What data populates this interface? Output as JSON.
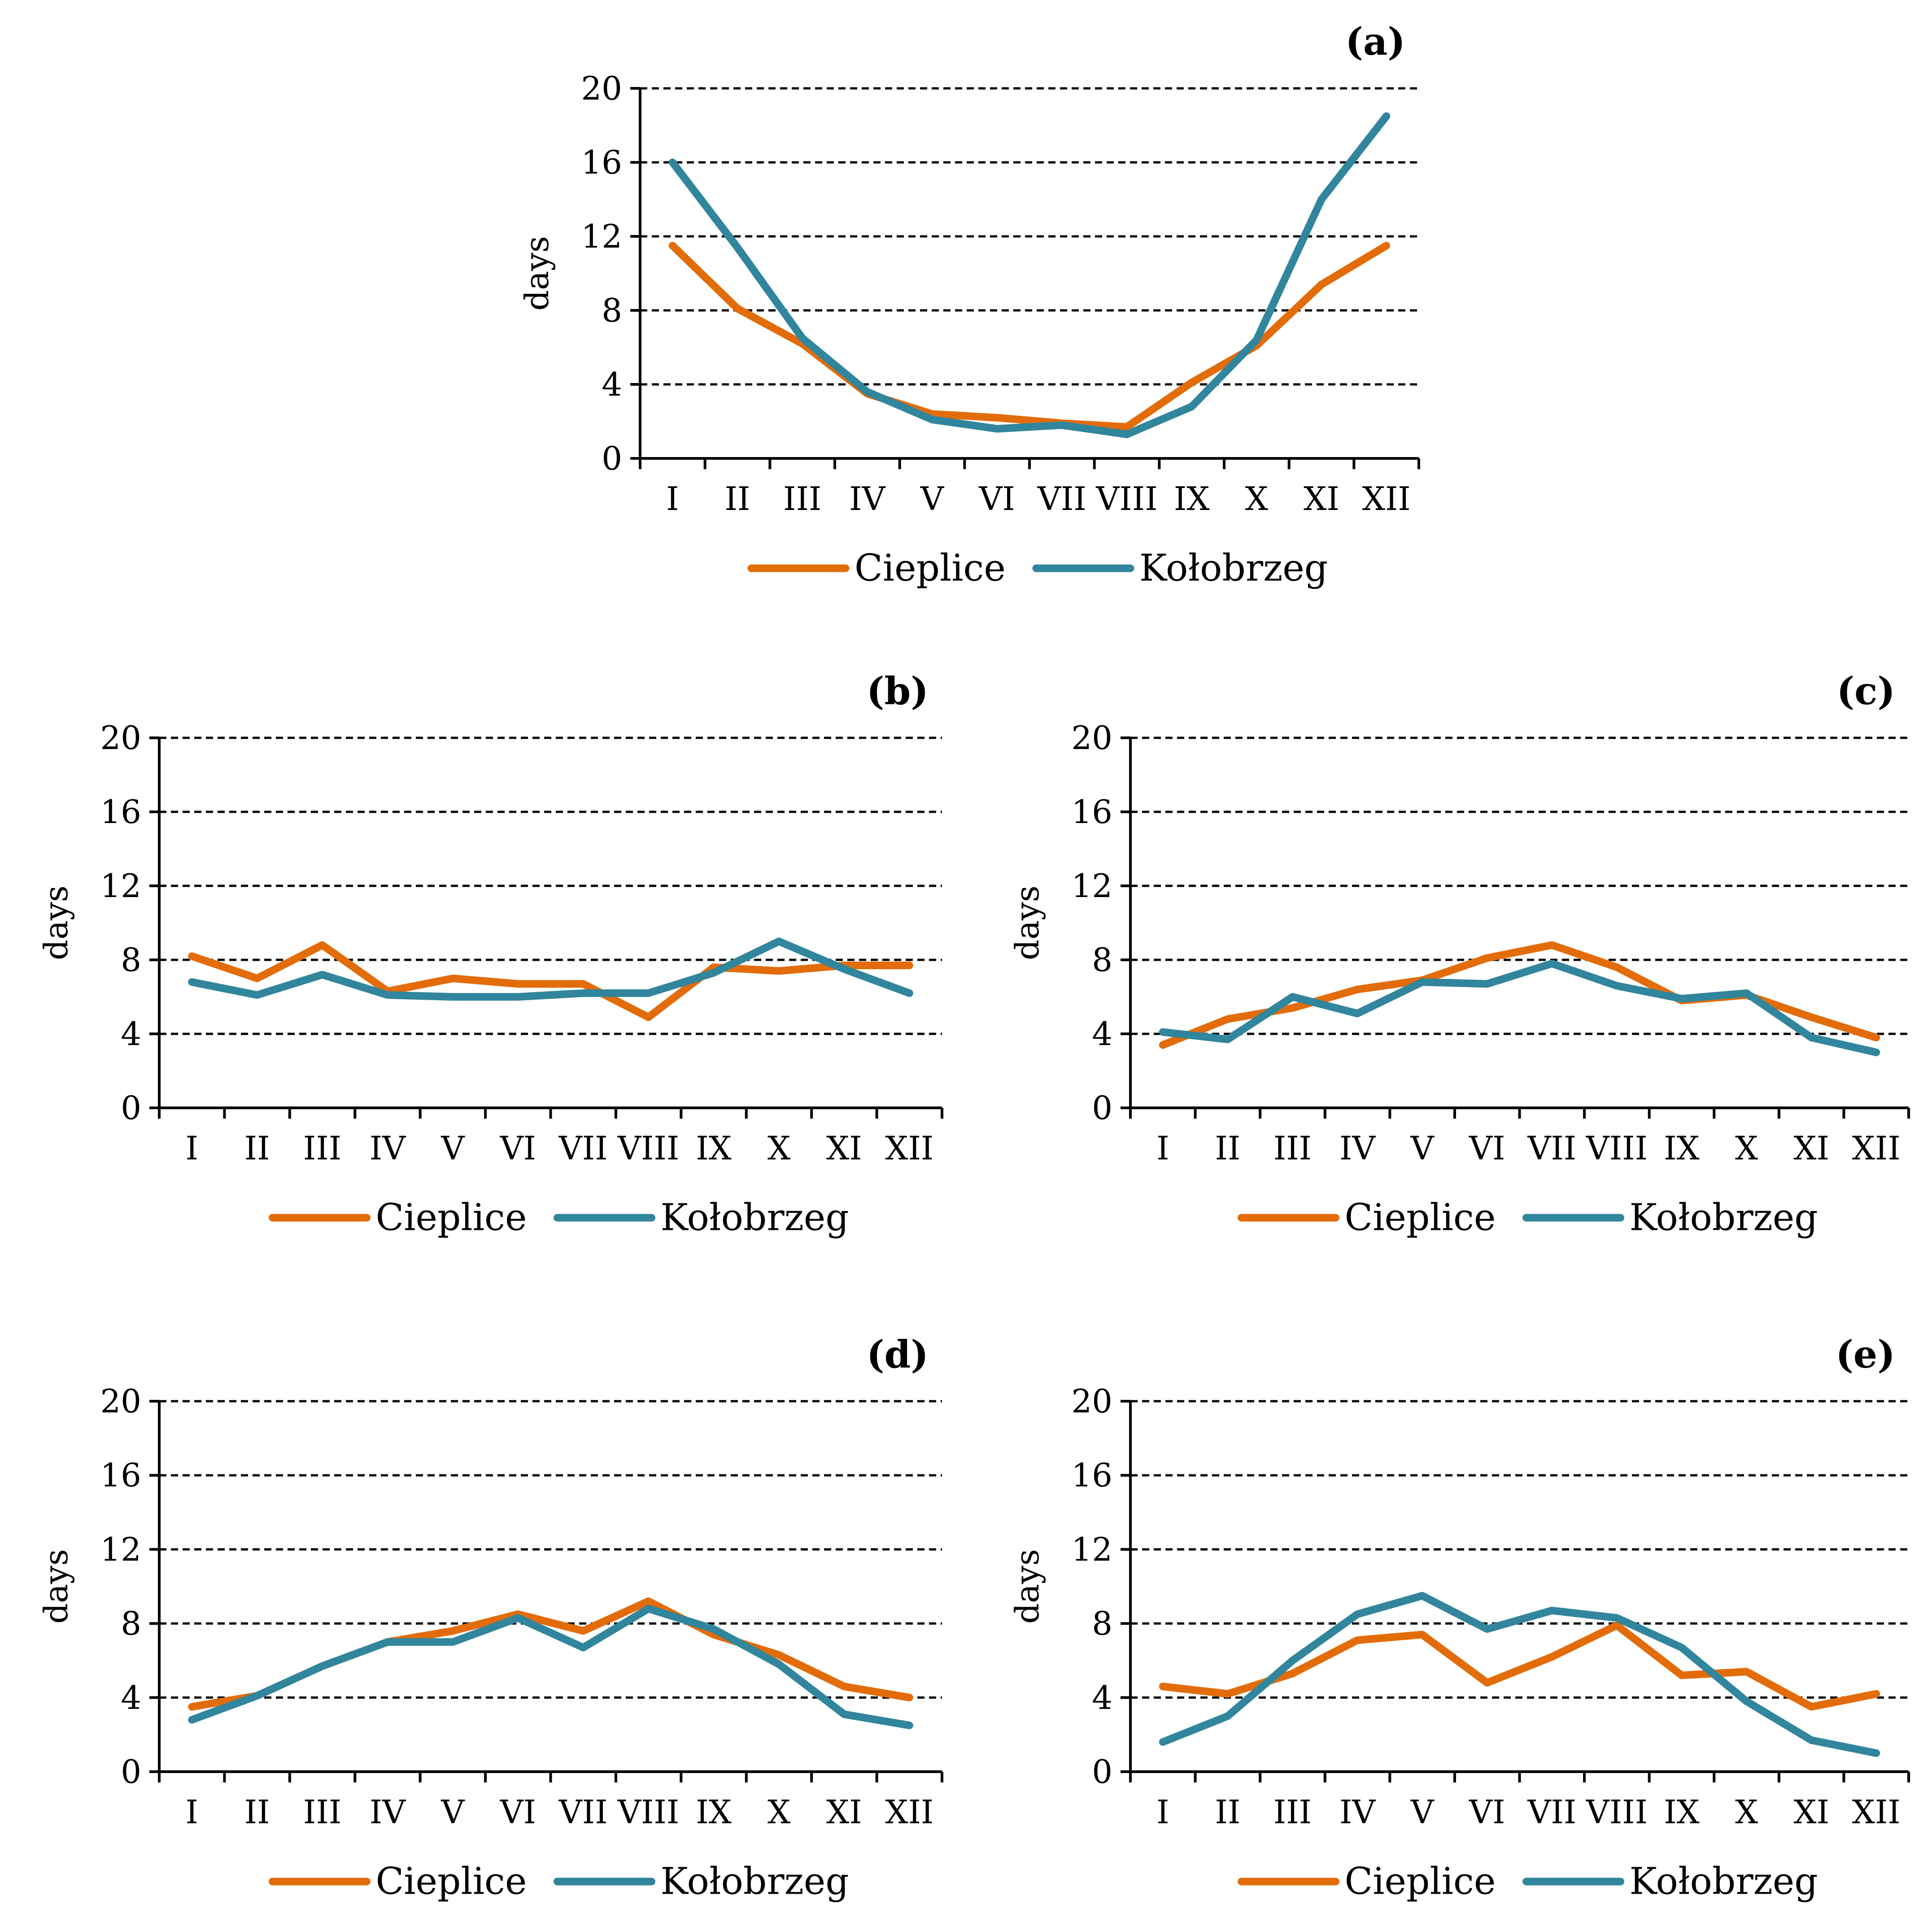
{
  "colors": {
    "cieplice": "#E36C0A",
    "kolobrzeg": "#31859C",
    "axis": "#000000",
    "grid": "#000000"
  },
  "chart_data": [
    {
      "type": "line",
      "panel": "(a)",
      "ylabel": "days",
      "xlabel": "",
      "ylim": [
        0,
        20
      ],
      "yticks": [
        "0",
        "4",
        "8",
        "12",
        "16",
        "20"
      ],
      "grid": "horizontal dashed",
      "legend_position": "bottom",
      "categories": [
        "I",
        "II",
        "III",
        "IV",
        "V",
        "VI",
        "VII",
        "VIII",
        "IX",
        "X",
        "XI",
        "XII"
      ],
      "series": [
        {
          "name": "Cieplice",
          "values": [
            11.5,
            8.1,
            6.2,
            3.5,
            2.4,
            2.2,
            1.9,
            1.7,
            4.1,
            6.1,
            9.4,
            11.5
          ]
        },
        {
          "name": "Kołobrzeg",
          "values": [
            16.0,
            11.4,
            6.5,
            3.6,
            2.1,
            1.6,
            1.8,
            1.3,
            2.8,
            6.4,
            14.0,
            18.5
          ]
        }
      ]
    },
    {
      "type": "line",
      "panel": "(b)",
      "ylabel": "days",
      "xlabel": "",
      "ylim": [
        0,
        20
      ],
      "yticks": [
        "0",
        "4",
        "8",
        "12",
        "16",
        "20"
      ],
      "grid": "horizontal dashed",
      "legend_position": "bottom",
      "categories": [
        "I",
        "II",
        "III",
        "IV",
        "V",
        "VI",
        "VII",
        "VIII",
        "IX",
        "X",
        "XI",
        "XII"
      ],
      "series": [
        {
          "name": "Cieplice",
          "values": [
            8.2,
            7.0,
            8.8,
            6.3,
            7.0,
            6.7,
            6.7,
            4.9,
            7.6,
            7.4,
            7.7,
            7.7
          ]
        },
        {
          "name": "Kołobrzeg",
          "values": [
            6.8,
            6.1,
            7.2,
            6.1,
            6.0,
            6.0,
            6.2,
            6.2,
            7.3,
            9.0,
            7.5,
            6.2
          ]
        }
      ]
    },
    {
      "type": "line",
      "panel": "(c)",
      "ylabel": "days",
      "xlabel": "",
      "ylim": [
        0,
        20
      ],
      "yticks": [
        "0",
        "4",
        "8",
        "12",
        "16",
        "20"
      ],
      "grid": "horizontal dashed",
      "legend_position": "bottom",
      "categories": [
        "I",
        "II",
        "III",
        "IV",
        "V",
        "VI",
        "VII",
        "VIII",
        "IX",
        "X",
        "XI",
        "XII"
      ],
      "series": [
        {
          "name": "Cieplice",
          "values": [
            3.4,
            4.8,
            5.4,
            6.4,
            6.9,
            8.1,
            8.8,
            7.6,
            5.8,
            6.1,
            4.9,
            3.8
          ]
        },
        {
          "name": "Kołobrzeg",
          "values": [
            4.1,
            3.7,
            6.0,
            5.1,
            6.8,
            6.7,
            7.8,
            6.6,
            5.9,
            6.2,
            3.8,
            3.0
          ]
        }
      ]
    },
    {
      "type": "line",
      "panel": "(d)",
      "ylabel": "days",
      "xlabel": "",
      "ylim": [
        0,
        20
      ],
      "yticks": [
        "0",
        "4",
        "8",
        "12",
        "16",
        "20"
      ],
      "grid": "horizontal dashed",
      "legend_position": "bottom",
      "categories": [
        "I",
        "II",
        "III",
        "IV",
        "V",
        "VI",
        "VII",
        "VIII",
        "IX",
        "X",
        "XI",
        "XII"
      ],
      "series": [
        {
          "name": "Cieplice",
          "values": [
            3.5,
            4.1,
            5.7,
            7.0,
            7.6,
            8.5,
            7.6,
            9.2,
            7.4,
            6.3,
            4.6,
            4.0
          ]
        },
        {
          "name": "Kołobrzeg",
          "values": [
            2.8,
            4.1,
            5.7,
            7.0,
            7.0,
            8.3,
            6.7,
            8.8,
            7.7,
            5.8,
            3.1,
            2.5
          ]
        }
      ]
    },
    {
      "type": "line",
      "panel": "(e)",
      "ylabel": "days",
      "xlabel": "",
      "ylim": [
        0,
        20
      ],
      "yticks": [
        "0",
        "4",
        "8",
        "12",
        "16",
        "20"
      ],
      "grid": "horizontal dashed",
      "legend_position": "bottom",
      "categories": [
        "I",
        "II",
        "III",
        "IV",
        "V",
        "VI",
        "VII",
        "VIII",
        "IX",
        "X",
        "XI",
        "XII"
      ],
      "series": [
        {
          "name": "Cieplice",
          "values": [
            4.6,
            4.2,
            5.3,
            7.1,
            7.4,
            4.8,
            6.2,
            7.9,
            5.2,
            5.4,
            3.5,
            4.2
          ]
        },
        {
          "name": "Kołobrzeg",
          "values": [
            1.6,
            3.0,
            6.0,
            8.5,
            9.5,
            7.7,
            8.7,
            8.3,
            6.7,
            3.8,
            1.7,
            1.0
          ]
        }
      ]
    }
  ]
}
